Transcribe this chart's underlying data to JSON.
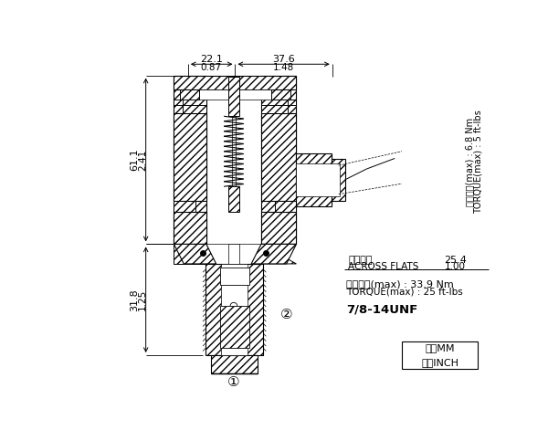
{
  "bg_color": "#ffffff",
  "annotations": {
    "dim_top_left": "22.1",
    "dim_top_left_inch": "0.87",
    "dim_top_right": "37.6",
    "dim_top_right_inch": "1.48",
    "dim_left_upper": "61.1",
    "dim_left_upper_inch": "2.41",
    "dim_left_lower": "31.8",
    "dim_left_lower_inch": "1.25",
    "across_flats_label": "對邊寬度",
    "across_flats_en": "ACROSS FLATS",
    "across_flats_val": "25.4",
    "across_flats_inch": "1.00",
    "torque_label": "安裝扭矩(max) : 33.9 Nm",
    "torque_en": "TORQUE(max) : 25 ft-lbs",
    "thread": "7/8-14UNF",
    "install_torque_cn": "安裝扭矩(max) : 6.8 Nm",
    "install_torque_en": "TORQUE(max) : 5 ft-lbs",
    "unit_mm": "毫米MM",
    "unit_inch": "英寸INCH",
    "circle1": "①",
    "circle2": "②"
  },
  "fig_width": 6.0,
  "fig_height": 4.83,
  "dpi": 100
}
